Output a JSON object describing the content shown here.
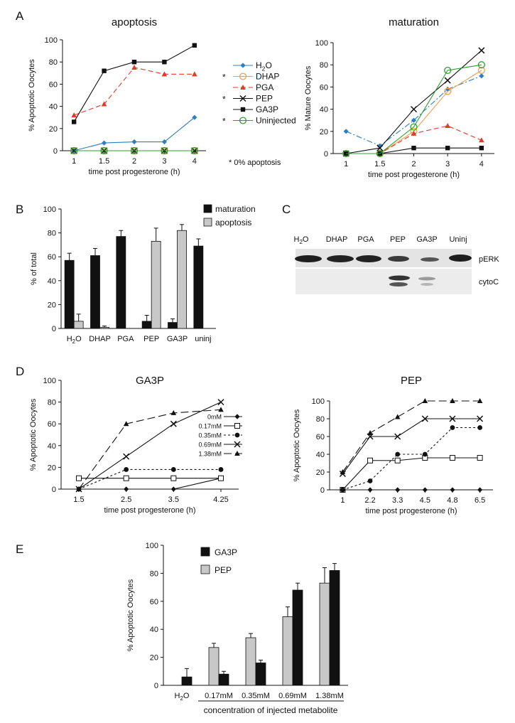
{
  "panel_letters": [
    "A",
    "B",
    "C",
    "D",
    "E"
  ],
  "colors": {
    "H2O": "#2d7fc1",
    "DHAP": "#f0a050",
    "PGA": "#e03a2a",
    "PEP": "#111111",
    "GA3P": "#111111",
    "Uninjected": "#2ca02c",
    "black_bar": "#111111",
    "gray_bar": "#c8c8c8"
  },
  "chart_data": [
    {
      "id": "A_apoptosis",
      "type": "line",
      "title": "apoptosis",
      "xlabel": "time post progesterone (h)",
      "ylabel": "% Apoptotic Oocytes",
      "categories": [
        "1",
        "1.5",
        "2",
        "3",
        "4"
      ],
      "ylim": [
        0,
        100
      ],
      "yticks": [
        0,
        20,
        40,
        60,
        80,
        100
      ],
      "series": [
        {
          "name": "H2O",
          "values": [
            0,
            7,
            8,
            8,
            30
          ],
          "color": "#2d7fc1",
          "marker": "diamond",
          "dash": "solid"
        },
        {
          "name": "DHAP",
          "values": [
            0,
            0,
            0,
            0,
            0
          ],
          "color": "#f0a050",
          "marker": "circle-open",
          "dash": "solid"
        },
        {
          "name": "PGA",
          "values": [
            32,
            42,
            75,
            69,
            69
          ],
          "color": "#e03a2a",
          "marker": "triangle",
          "dash": "dashed"
        },
        {
          "name": "PEP",
          "values": [
            0,
            0,
            0,
            0,
            0
          ],
          "color": "#111111",
          "marker": "x",
          "dash": "solid"
        },
        {
          "name": "GA3P",
          "values": [
            26,
            72,
            80,
            80,
            95
          ],
          "color": "#111111",
          "marker": "square",
          "dash": "solid"
        },
        {
          "name": "Uninjected",
          "values": [
            0,
            0,
            0,
            0,
            0
          ],
          "color": "#2ca02c",
          "marker": "circle-open",
          "dash": "solid"
        }
      ],
      "legend": {
        "position": "right",
        "entries": [
          {
            "star": "",
            "label": "H2O"
          },
          {
            "star": "*",
            "label": "DHAP"
          },
          {
            "star": "",
            "label": "PGA"
          },
          {
            "star": "*",
            "label": "PEP"
          },
          {
            "star": "",
            "label": "GA3P"
          },
          {
            "star": "*",
            "label": "Uninjected"
          }
        ]
      },
      "note": "* 0% apoptosis"
    },
    {
      "id": "A_maturation",
      "type": "line",
      "title": "maturation",
      "xlabel": "time post progesterone (h)",
      "ylabel": "% Mature Oocytes",
      "categories": [
        "1",
        "1.5",
        "2",
        "3",
        "4"
      ],
      "ylim": [
        0,
        100
      ],
      "yticks": [
        0,
        20,
        40,
        60,
        80,
        100
      ],
      "series": [
        {
          "name": "H2O",
          "values": [
            20,
            7,
            30,
            58,
            70
          ],
          "color": "#2d7fc1",
          "marker": "diamond",
          "dash": "dashdot"
        },
        {
          "name": "DHAP",
          "values": [
            0,
            0,
            20,
            56,
            75
          ],
          "color": "#f0a050",
          "marker": "circle-open",
          "dash": "solid"
        },
        {
          "name": "PGA",
          "values": [
            0,
            0,
            18,
            25,
            12
          ],
          "color": "#e03a2a",
          "marker": "triangle",
          "dash": "dashed"
        },
        {
          "name": "PEP",
          "values": [
            0,
            5,
            40,
            66,
            93
          ],
          "color": "#111111",
          "marker": "x",
          "dash": "solid"
        },
        {
          "name": "GA3P",
          "values": [
            0,
            0,
            5,
            5,
            5
          ],
          "color": "#111111",
          "marker": "square",
          "dash": "solid"
        },
        {
          "name": "Uninjected",
          "values": [
            0,
            0,
            24,
            75,
            80
          ],
          "color": "#2ca02c",
          "marker": "circle-open",
          "dash": "solid"
        }
      ]
    },
    {
      "id": "B",
      "type": "bar",
      "ylabel": "% of total",
      "ylim": [
        0,
        100
      ],
      "yticks": [
        0,
        20,
        40,
        60,
        80,
        100
      ],
      "categories": [
        "H2O",
        "DHAP",
        "PGA",
        "PEP",
        "GA3P",
        "uninj"
      ],
      "series": [
        {
          "name": "maturation",
          "values": [
            57,
            61,
            77,
            6,
            5,
            69
          ],
          "errors": [
            6,
            6,
            5,
            5,
            3,
            6
          ],
          "color": "#111111"
        },
        {
          "name": "apoptosis",
          "values": [
            6,
            1,
            0,
            73,
            82,
            0
          ],
          "errors": [
            6,
            1,
            0,
            11,
            5,
            0
          ],
          "color": "#c8c8c8"
        }
      ],
      "legend": {
        "position": "top-right"
      }
    },
    {
      "id": "D_GA3P",
      "type": "line",
      "title": "GA3P",
      "xlabel": "time post progesterone (h)",
      "ylabel": "% Apoptotic Oocytes",
      "categories": [
        "1.5",
        "2.5",
        "3.5",
        "4.25"
      ],
      "ylim": [
        0,
        100
      ],
      "yticks": [
        0,
        20,
        40,
        60,
        80,
        100
      ],
      "series": [
        {
          "name": "0mM",
          "values": [
            0,
            0,
            0,
            10
          ],
          "marker": "diamond",
          "dash": "solid"
        },
        {
          "name": "0.17mM",
          "values": [
            10,
            10,
            10,
            10
          ],
          "marker": "square-open",
          "dash": "solid"
        },
        {
          "name": "0.35mM",
          "values": [
            0,
            18,
            18,
            18
          ],
          "marker": "circle",
          "dash": "dotted"
        },
        {
          "name": "0.69mM",
          "values": [
            0,
            30,
            60,
            80
          ],
          "marker": "x",
          "dash": "solid"
        },
        {
          "name": "1.38mM",
          "values": [
            0,
            60,
            70,
            73
          ],
          "marker": "triangle",
          "dash": "longdash"
        }
      ],
      "legend": {
        "position": "right"
      }
    },
    {
      "id": "D_PEP",
      "type": "line",
      "title": "PEP",
      "xlabel": "time post progesterone (h)",
      "ylabel": "% Apoptotic Oocytes",
      "categories": [
        "1",
        "2.2",
        "3.3",
        "4.5",
        "4.8",
        "6.5"
      ],
      "ylim": [
        0,
        100
      ],
      "yticks": [
        0,
        20,
        40,
        60,
        80,
        100
      ],
      "series": [
        {
          "name": "0mM",
          "values": [
            0,
            0,
            0,
            0,
            0,
            0
          ],
          "marker": "diamond",
          "dash": "solid"
        },
        {
          "name": "0.17mM",
          "values": [
            0,
            33,
            33,
            36,
            36,
            36
          ],
          "marker": "square-open",
          "dash": "solid"
        },
        {
          "name": "0.35mM",
          "values": [
            0,
            10,
            40,
            40,
            70,
            70
          ],
          "marker": "circle",
          "dash": "dotted"
        },
        {
          "name": "0.69mM",
          "values": [
            18,
            60,
            60,
            80,
            80,
            80
          ],
          "marker": "x",
          "dash": "solid"
        },
        {
          "name": "1.38mM",
          "values": [
            20,
            64,
            82,
            100,
            100,
            100
          ],
          "marker": "triangle",
          "dash": "longdash"
        }
      ]
    },
    {
      "id": "E",
      "type": "bar",
      "ylabel": "% Apoptotic Oocytes",
      "xlabel": "concentration of injected metabolite",
      "ylim": [
        0,
        100
      ],
      "yticks": [
        0,
        20,
        40,
        60,
        80,
        100
      ],
      "categories": [
        "H2O",
        "0.17mM",
        "0.35mM",
        "0.69mM",
        "1.38mM"
      ],
      "series": [
        {
          "name": "PEP",
          "values": [
            null,
            27,
            34,
            49,
            73
          ],
          "errors": [
            0,
            3,
            3,
            7,
            11
          ],
          "color": "#c8c8c8"
        },
        {
          "name": "GA3P",
          "values": [
            6,
            8,
            16,
            68,
            82
          ],
          "errors": [
            6,
            2,
            2,
            5,
            5
          ],
          "color": "#111111"
        }
      ],
      "legend": {
        "position": "top-left",
        "order": [
          "GA3P",
          "PEP"
        ]
      }
    }
  ],
  "blot": {
    "lanes": [
      "H2O",
      "DHAP",
      "PGA",
      "PEP",
      "GA3P",
      "Uninj"
    ],
    "rows": [
      "pERK",
      "cytoC"
    ]
  }
}
